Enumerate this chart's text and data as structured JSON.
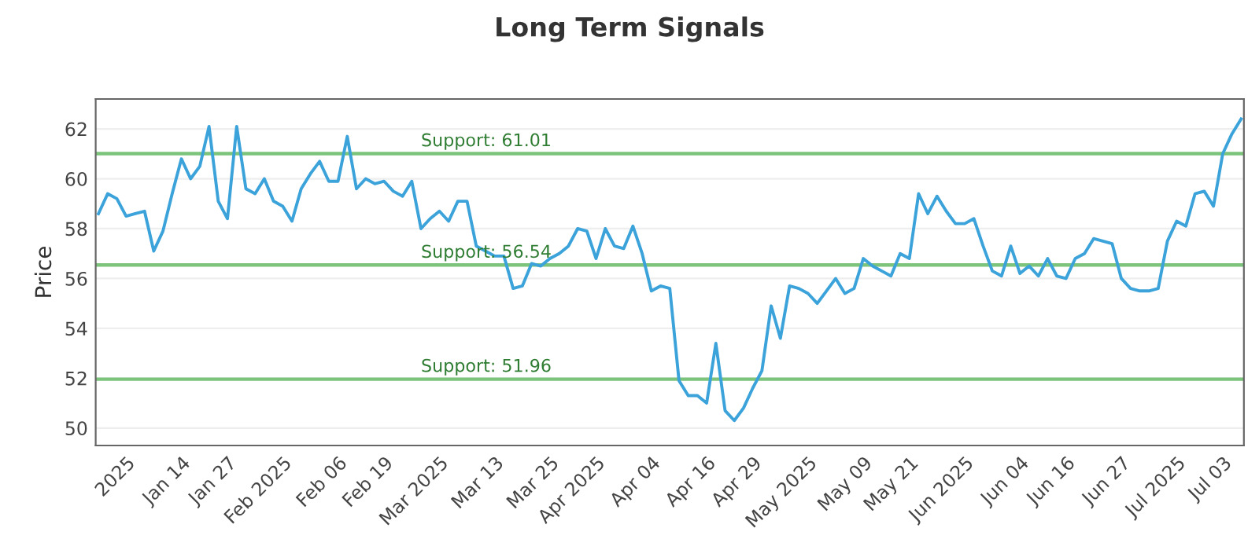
{
  "chart_data": {
    "type": "line",
    "title": "Long Term Signals",
    "ylabel": "Price",
    "categories": [
      null,
      null,
      null,
      "2025",
      null,
      null,
      null,
      null,
      null,
      "Jan 14",
      null,
      null,
      null,
      null,
      "Jan 27",
      null,
      null,
      null,
      null,
      null,
      "Feb 2025",
      null,
      null,
      null,
      null,
      null,
      "Feb 06",
      null,
      null,
      null,
      null,
      "Feb 19",
      null,
      null,
      null,
      null,
      null,
      "Mar 2025",
      null,
      null,
      null,
      null,
      null,
      "Mar 13",
      null,
      null,
      null,
      null,
      null,
      "Mar 25",
      null,
      null,
      null,
      null,
      "Apr 2025",
      null,
      null,
      null,
      null,
      null,
      "Apr 04",
      null,
      null,
      null,
      null,
      null,
      "Apr 16",
      null,
      null,
      null,
      null,
      "Apr 29",
      null,
      null,
      null,
      null,
      null,
      "May 2025",
      null,
      null,
      null,
      null,
      null,
      "May 09",
      null,
      null,
      null,
      null,
      "May 21",
      null,
      null,
      null,
      null,
      null,
      "Jun 2025",
      null,
      null,
      null,
      null,
      null,
      "Jun 04",
      null,
      null,
      null,
      null,
      "Jun 16",
      null,
      null,
      null,
      null,
      null,
      "Jun 27",
      null,
      null,
      null,
      null,
      null,
      "Jul 2025",
      null,
      null,
      null,
      null,
      "Jul 03",
      null,
      null
    ],
    "series": [
      {
        "color": "#3ba3da",
        "values": [
          58.6,
          59.4,
          59.2,
          58.5,
          58.6,
          58.7,
          57.1,
          57.9,
          59.4,
          60.8,
          60.0,
          60.5,
          62.1,
          59.1,
          58.4,
          62.1,
          59.6,
          59.4,
          60.0,
          59.1,
          58.9,
          58.3,
          59.6,
          60.2,
          60.7,
          59.9,
          59.9,
          61.7,
          59.6,
          60.0,
          59.8,
          59.9,
          59.5,
          59.3,
          59.9,
          58.0,
          58.4,
          58.7,
          58.3,
          59.1,
          59.1,
          57.3,
          57.1,
          56.9,
          56.9,
          55.6,
          55.7,
          56.6,
          56.5,
          56.8,
          57.0,
          57.3,
          58.0,
          57.9,
          56.8,
          58.0,
          57.3,
          57.2,
          58.1,
          57.0,
          55.5,
          55.7,
          55.6,
          51.9,
          51.3,
          51.3,
          51.0,
          53.4,
          50.7,
          50.3,
          50.8,
          51.6,
          52.3,
          54.9,
          53.6,
          55.7,
          55.6,
          55.4,
          55.0,
          55.5,
          56.0,
          55.4,
          55.6,
          56.8,
          56.5,
          56.3,
          56.1,
          57.0,
          56.8,
          59.4,
          58.6,
          59.3,
          58.7,
          58.2,
          58.2,
          58.4,
          57.3,
          56.3,
          56.1,
          57.3,
          56.2,
          56.5,
          56.1,
          56.8,
          56.1,
          56.0,
          56.8,
          57.0,
          57.6,
          57.5,
          57.4,
          56.0,
          55.6,
          55.5,
          55.5,
          55.6,
          57.5,
          58.3,
          58.1,
          59.4,
          59.5,
          58.9,
          61.0,
          61.8,
          62.4
        ]
      }
    ],
    "ylim": [
      49.3,
      63.2
    ],
    "yticks": [
      50,
      52,
      54,
      56,
      58,
      60,
      62
    ],
    "grid": "y",
    "legend": false,
    "marker": "none",
    "line_style": "solid",
    "ref_lines": [
      {
        "axis": "y",
        "value": 61.01,
        "label": "Support: 61.01",
        "color": "#7cc47c"
      },
      {
        "axis": "y",
        "value": 56.54,
        "label": "Support: 56.54",
        "color": "#7cc47c"
      },
      {
        "axis": "y",
        "value": 51.96,
        "label": "Support: 51.96",
        "color": "#7cc47c"
      }
    ]
  }
}
